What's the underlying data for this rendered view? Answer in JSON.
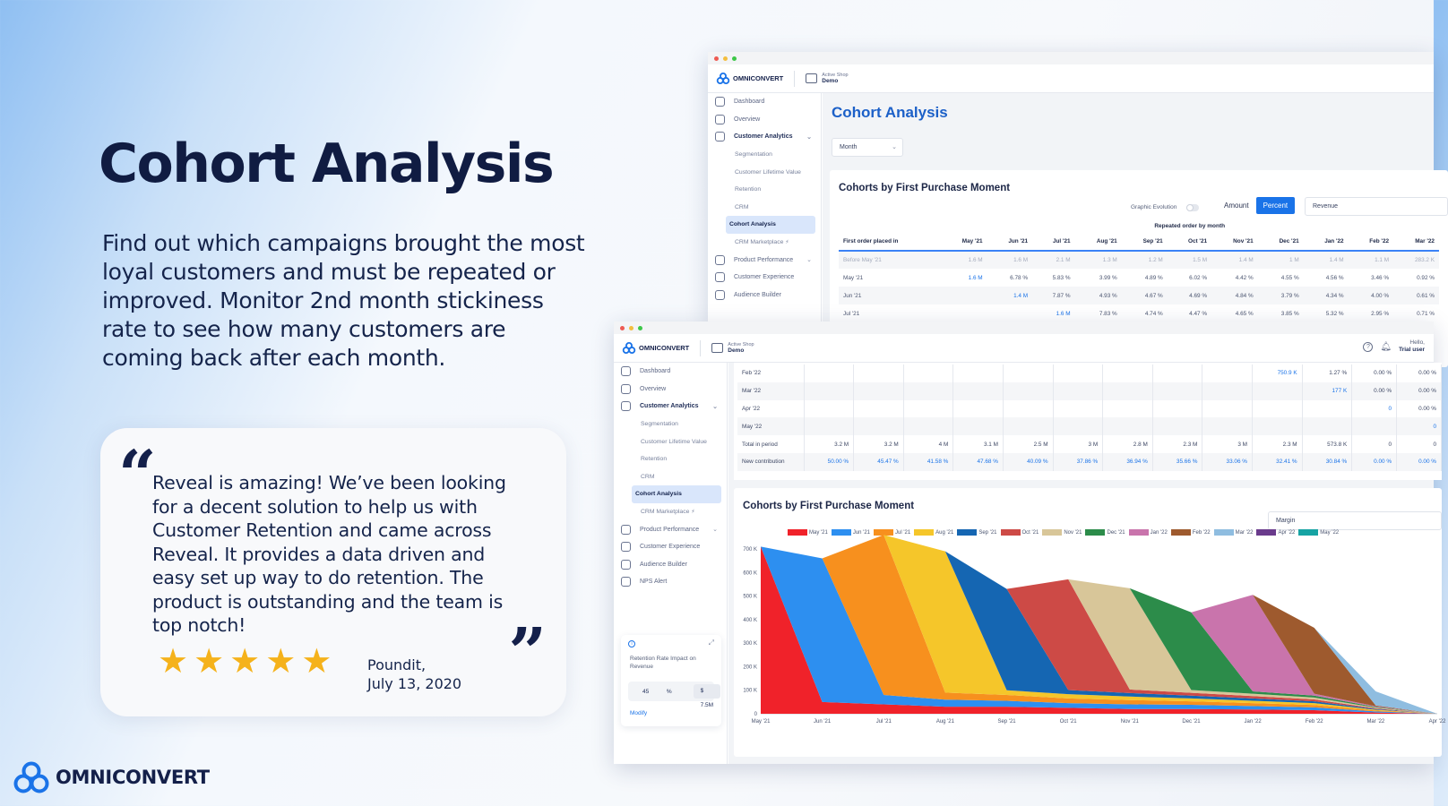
{
  "hero": {
    "title": "Cohort Analysis",
    "description": "Find out which campaigns brought the most loyal customers and must be repeated or improved. Monitor 2nd month stickiness rate to see how many customers are coming back after each month."
  },
  "testimonial": {
    "text": "Reveal is amazing! We’ve been looking for a decent solution to help us with Customer Retention and came across Reveal. It provides a data driven and easy set up way to do retention. The product is outstanding and the team is top notch!",
    "stars": 5,
    "author": "Poundit,",
    "date": "July 13, 2020",
    "star_color": "#f5b21b"
  },
  "brand": {
    "name": "OMNICONVERT",
    "color": "#1a73e8"
  },
  "app": {
    "logo": "OMNICONVERT",
    "shop_label": "Active Shop",
    "shop_value": "Demo",
    "hello": "Hello,",
    "user": "Trial user"
  },
  "sidebar": {
    "items": [
      {
        "label": "Dashboard",
        "icon": "dashboard-icon"
      },
      {
        "label": "Overview",
        "icon": "overview-icon"
      },
      {
        "label": "Customer Analytics",
        "icon": "analytics-icon"
      },
      {
        "label": "Segmentation"
      },
      {
        "label": "Customer Lifetime Value"
      },
      {
        "label": "Retention"
      },
      {
        "label": "CRM"
      },
      {
        "label": "Cohort Analysis"
      },
      {
        "label": "CRM Marketplace"
      },
      {
        "label": "Product Performance",
        "icon": "product-icon"
      },
      {
        "label": "Customer Experience",
        "icon": "experience-icon"
      },
      {
        "label": "Audience Builder",
        "icon": "audience-icon"
      },
      {
        "label": "NPS Alert",
        "icon": "nps-icon"
      }
    ]
  },
  "win1": {
    "page_title": "Cohort Analysis",
    "period_select": "Month",
    "card_title": "Cohorts by First Purchase Moment",
    "graphic_evolution": "Graphic Evolution",
    "amount": "Amount",
    "percent": "Percent",
    "metric_select": "Revenue",
    "group_header": "Repeated order by month",
    "columns": [
      "First order placed in",
      "May '21",
      "Jun '21",
      "Jul '21",
      "Aug '21",
      "Sep '21",
      "Oct '21",
      "Nov '21",
      "Dec '21",
      "Jan '22",
      "Feb '22",
      "Mar '22"
    ],
    "rows": [
      [
        "Before May '21",
        "1.6 M",
        "1.6 M",
        "2.1 M",
        "1.3 M",
        "1.2 M",
        "1.5 M",
        "1.4 M",
        "1 M",
        "1.4 M",
        "1.1 M",
        "283.2 K"
      ],
      [
        "May '21",
        "1.6 M",
        "6.78 %",
        "5.83 %",
        "3.99 %",
        "4.89 %",
        "6.02 %",
        "4.42 %",
        "4.55 %",
        "4.56 %",
        "3.46 %",
        "0.92 %"
      ],
      [
        "Jun '21",
        "",
        "1.4 M",
        "7.87 %",
        "4.93 %",
        "4.67 %",
        "4.69 %",
        "4.84 %",
        "3.79 %",
        "4.34 %",
        "4.00 %",
        "0.61 %"
      ],
      [
        "Jul '21",
        "",
        "",
        "1.6 M",
        "7.83 %",
        "4.74 %",
        "4.47 %",
        "4.65 %",
        "3.85 %",
        "5.32 %",
        "2.95 %",
        "0.71 %"
      ]
    ]
  },
  "win2": {
    "rows": [
      [
        "Feb '22",
        "",
        "",
        "",
        "",
        "",
        "",
        "",
        "",
        "",
        "750.9 K",
        "1.27 %",
        "0.00 %",
        "0.00 %"
      ],
      [
        "Mar '22",
        "",
        "",
        "",
        "",
        "",
        "",
        "",
        "",
        "",
        "",
        "177 K",
        "0.00 %",
        "0.00 %"
      ],
      [
        "Apr '22",
        "",
        "",
        "",
        "",
        "",
        "",
        "",
        "",
        "",
        "",
        "",
        "0",
        "0.00 %"
      ],
      [
        "May '22",
        "",
        "",
        "",
        "",
        "",
        "",
        "",
        "",
        "",
        "",
        "",
        "",
        "0"
      ],
      [
        "Total in period",
        "3.2 M",
        "3.2 M",
        "4 M",
        "3.1 M",
        "2.5 M",
        "3 M",
        "2.8 M",
        "2.3 M",
        "3 M",
        "2.3 M",
        "573.8 K",
        "0",
        "0"
      ],
      [
        "New contribution",
        "50.00 %",
        "45.47 %",
        "41.58 %",
        "47.68 %",
        "40.09 %",
        "37.86 %",
        "36.94 %",
        "35.66 %",
        "33.06 %",
        "32.41 %",
        "30.84 %",
        "0.00 %",
        "0.00 %"
      ]
    ],
    "chart_title": "Cohorts by First Purchase Moment",
    "chart_select": "Margin",
    "widget": {
      "text": "Retention Rate Impact on Revenue",
      "percent": "45",
      "percent_unit": "%",
      "value": "$ 7.5M",
      "modify": "Modify"
    }
  },
  "chart_data": {
    "type": "area",
    "title": "Cohorts by First Purchase Moment",
    "x": [
      "May '21",
      "Jun '21",
      "Jul '21",
      "Aug '21",
      "Sep '21",
      "Oct '21",
      "Nov '21",
      "Dec '21",
      "Jan '22",
      "Feb '22",
      "Mar '22",
      "Apr '22"
    ],
    "ylim": [
      0,
      700000
    ],
    "y_ticks": [
      "0",
      "100 K",
      "200 K",
      "300 K",
      "400 K",
      "500 K",
      "600 K",
      "700 K"
    ],
    "legend_position": "top",
    "series": [
      {
        "name": "May '21",
        "color": "#f0222a",
        "values": [
          710000,
          50000,
          40000,
          30000,
          30000,
          25000,
          20000,
          20000,
          18000,
          15000,
          5000,
          0
        ]
      },
      {
        "name": "Jun '21",
        "color": "#2d8ff0",
        "values": [
          0,
          610000,
          40000,
          30000,
          25000,
          20000,
          20000,
          18000,
          15000,
          12000,
          5000,
          0
        ]
      },
      {
        "name": "Jul '21",
        "color": "#f7901e",
        "values": [
          0,
          0,
          680000,
          30000,
          25000,
          20000,
          18000,
          15000,
          12000,
          10000,
          4000,
          0
        ]
      },
      {
        "name": "Aug '21",
        "color": "#f5c62a",
        "values": [
          0,
          0,
          0,
          600000,
          20000,
          18000,
          15000,
          12000,
          10000,
          8000,
          3000,
          0
        ]
      },
      {
        "name": "Sep '21",
        "color": "#1566b2",
        "values": [
          0,
          0,
          0,
          0,
          430000,
          18000,
          15000,
          12000,
          10000,
          8000,
          3000,
          0
        ]
      },
      {
        "name": "Oct '21",
        "color": "#cd4a46",
        "values": [
          0,
          0,
          0,
          0,
          0,
          470000,
          15000,
          12000,
          10000,
          8000,
          3000,
          0
        ]
      },
      {
        "name": "Nov '21",
        "color": "#d8c699",
        "values": [
          0,
          0,
          0,
          0,
          0,
          0,
          430000,
          12000,
          10000,
          8000,
          3000,
          0
        ]
      },
      {
        "name": "Dec '21",
        "color": "#2c8c4a",
        "values": [
          0,
          0,
          0,
          0,
          0,
          0,
          0,
          330000,
          10000,
          8000,
          3000,
          0
        ]
      },
      {
        "name": "Jan '22",
        "color": "#c974ac",
        "values": [
          0,
          0,
          0,
          0,
          0,
          0,
          0,
          0,
          410000,
          8000,
          3000,
          0
        ]
      },
      {
        "name": "Feb '22",
        "color": "#9e5a2e",
        "values": [
          0,
          0,
          0,
          0,
          0,
          0,
          0,
          0,
          0,
          280000,
          3000,
          0
        ]
      },
      {
        "name": "Mar '22",
        "color": "#8fbde0",
        "values": [
          0,
          0,
          0,
          0,
          0,
          0,
          0,
          0,
          0,
          0,
          60000,
          0
        ]
      },
      {
        "name": "Apr '22",
        "color": "#6a3b8c",
        "values": [
          0,
          0,
          0,
          0,
          0,
          0,
          0,
          0,
          0,
          0,
          0,
          0
        ]
      },
      {
        "name": "May '22",
        "color": "#16a3a3",
        "values": [
          0,
          0,
          0,
          0,
          0,
          0,
          0,
          0,
          0,
          0,
          0,
          0
        ]
      }
    ]
  }
}
